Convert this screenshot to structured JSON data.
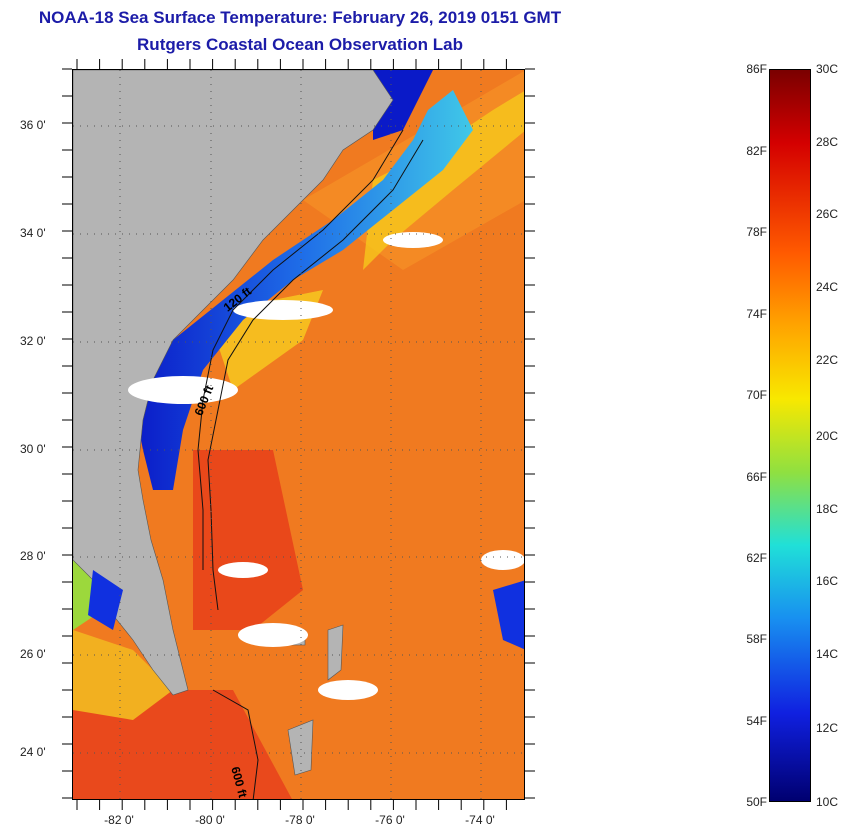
{
  "title": {
    "line1": "NOAA-18 Sea Surface Temperature:  February 26, 2019 0151 GMT",
    "line2": "Rutgers Coastal Ocean Observation Lab"
  },
  "map": {
    "latitudes": [
      "36 0'",
      "34 0'",
      "32 0'",
      "30 0'",
      "28 0'",
      "26 0'",
      "24 0'"
    ],
    "longitudes": [
      "-82 0'",
      "-80 0'",
      "-78 0'",
      "-76 0'",
      "-74 0'"
    ],
    "contours": [
      "120 ft",
      "600 ft",
      "600 ft"
    ],
    "colors": {
      "land": "#b4b4b4",
      "warm_ocean": "#f07a20",
      "hot_ocean": "#e8401a",
      "cold_ocean": "#1030e0",
      "cloud": "#ffffff"
    }
  },
  "colorbar": {
    "fahrenheit": [
      "86F",
      "82F",
      "78F",
      "74F",
      "70F",
      "66F",
      "62F",
      "58F",
      "54F",
      "50F"
    ],
    "celsius": [
      "30C",
      "28C",
      "26C",
      "24C",
      "22C",
      "20C",
      "18C",
      "16C",
      "14C",
      "12C",
      "10C"
    ]
  }
}
